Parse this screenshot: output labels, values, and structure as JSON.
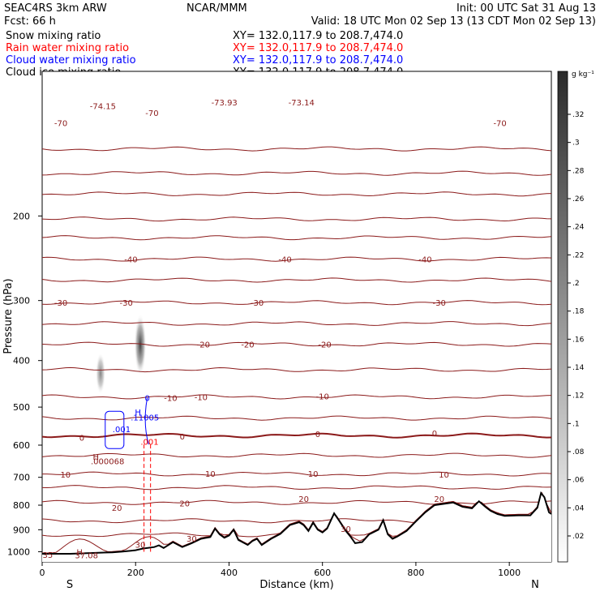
{
  "header": {
    "model": "SEAC4RS  3km ARW",
    "org": "NCAR/MMM",
    "init": "Init: 00 UTC Sat 31 Aug 13",
    "fcst": "Fcst:   66 h",
    "valid": "Valid: 18 UTC Mon 02 Sep 13 (13 CDT Mon 02 Sep 13)",
    "fields": [
      {
        "name": "Snow mixing ratio",
        "color": "#000000",
        "xy": "XY= 132.0,117.9 to 208.7,474.0"
      },
      {
        "name": "Rain water mixing ratio",
        "color": "#ff0000",
        "xy": "XY= 132.0,117.9 to 208.7,474.0"
      },
      {
        "name": "Cloud water mixing ratio",
        "color": "#0000ff",
        "xy": "XY= 132.0,117.9 to 208.7,474.0"
      },
      {
        "name": "Cloud ice mixing ratio",
        "color": "#000000",
        "xy": "XY= 132.0,117.9 to 208.7,474.0"
      }
    ]
  },
  "colorbar": {
    "unit": "g kg⁻¹",
    "ticks": [
      ".32",
      ".3",
      ".28",
      ".26",
      ".24",
      ".22",
      ".2",
      ".18",
      ".16",
      ".14",
      ".12",
      ".1",
      ".08",
      ".06",
      ".04",
      ".02"
    ]
  },
  "chart_data": {
    "type": "heatmap",
    "xlabel": "Distance (km)",
    "ylabel": "Pressure (hPa)",
    "xlim": [
      0,
      1090
    ],
    "ylim": [
      1050,
      100
    ],
    "y_scale": "log",
    "x_ticks": [
      0,
      200,
      400,
      600,
      800,
      1000
    ],
    "y_ticks": [
      200,
      300,
      400,
      500,
      600,
      700,
      800,
      900,
      1000
    ],
    "endpoint_labels": {
      "left": "S",
      "right": "N"
    },
    "contour_color": "#8b1a1a",
    "temperature_labels": [
      {
        "text": "-70",
        "x": 40,
        "p": 128
      },
      {
        "text": "-74.15",
        "x": 130,
        "p": 118
      },
      {
        "text": "-70",
        "x": 235,
        "p": 122
      },
      {
        "text": "-73.93",
        "x": 390,
        "p": 116
      },
      {
        "text": "-73.14",
        "x": 555,
        "p": 116
      },
      {
        "text": "-70",
        "x": 980,
        "p": 128
      },
      {
        "text": "-40",
        "x": 190,
        "p": 246
      },
      {
        "text": "-40",
        "x": 520,
        "p": 246
      },
      {
        "text": "-40",
        "x": 820,
        "p": 246
      },
      {
        "text": "-30",
        "x": 40,
        "p": 303
      },
      {
        "text": "-30",
        "x": 180,
        "p": 303
      },
      {
        "text": "-30",
        "x": 460,
        "p": 303
      },
      {
        "text": "-30",
        "x": 850,
        "p": 303
      },
      {
        "text": "-20",
        "x": 345,
        "p": 370
      },
      {
        "text": "-20",
        "x": 440,
        "p": 370
      },
      {
        "text": "-20",
        "x": 605,
        "p": 370
      },
      {
        "text": "-10",
        "x": 275,
        "p": 478
      },
      {
        "text": "-10",
        "x": 340,
        "p": 476
      },
      {
        "text": "-10",
        "x": 600,
        "p": 474
      },
      {
        "text": "0",
        "x": 85,
        "p": 578
      },
      {
        "text": "0",
        "x": 300,
        "p": 575
      },
      {
        "text": "0",
        "x": 590,
        "p": 568
      },
      {
        "text": "0",
        "x": 840,
        "p": 566
      },
      {
        "text": "10",
        "x": 50,
        "p": 690
      },
      {
        "text": "10",
        "x": 360,
        "p": 688
      },
      {
        "text": "10",
        "x": 580,
        "p": 688
      },
      {
        "text": "10",
        "x": 860,
        "p": 690
      },
      {
        "text": "20",
        "x": 160,
        "p": 810
      },
      {
        "text": "20",
        "x": 305,
        "p": 792
      },
      {
        "text": "20",
        "x": 560,
        "p": 776
      },
      {
        "text": "20",
        "x": 850,
        "p": 776
      },
      {
        "text": "30",
        "x": 320,
        "p": 938
      },
      {
        "text": "30",
        "x": 650,
        "p": 895
      },
      {
        "text": "30",
        "x": 210,
        "p": 965
      },
      {
        "text": "35",
        "x": 12,
        "p": 1013
      }
    ],
    "temperature_isotherms": [
      {
        "t": -70,
        "p": 145
      },
      {
        "t": -70,
        "p": 163
      },
      {
        "t": -60,
        "p": 180
      },
      {
        "t": -60,
        "p": 203
      },
      {
        "t": -50,
        "p": 222
      },
      {
        "t": -40,
        "p": 246
      },
      {
        "t": -35,
        "p": 272
      },
      {
        "t": -30,
        "p": 303
      },
      {
        "t": -25,
        "p": 335
      },
      {
        "t": -20,
        "p": 370
      },
      {
        "t": -15,
        "p": 418
      },
      {
        "t": -10,
        "p": 476
      },
      {
        "t": -5,
        "p": 527
      },
      {
        "t": 0,
        "p": 573
      },
      {
        "t": 5,
        "p": 630
      },
      {
        "t": 10,
        "p": 689
      },
      {
        "t": 15,
        "p": 735
      },
      {
        "t": 20,
        "p": 790
      },
      {
        "t": 25,
        "p": 862
      },
      {
        "t": 30,
        "p": 922
      },
      {
        "t": 35,
        "p": 975
      }
    ],
    "extrema_labels": [
      {
        "text": "H",
        "x": 205,
        "p": 512,
        "color": "#0000ff"
      },
      {
        "text": ".11005",
        "x": 220,
        "p": 525,
        "color": "#0000ff"
      },
      {
        "text": "H",
        "x": 115,
        "p": 633,
        "color": "#8b1a1a"
      },
      {
        "text": ".000068",
        "x": 140,
        "p": 647,
        "color": "#8b1a1a"
      },
      {
        "text": "H",
        "x": 80,
        "p": 1000,
        "color": "#8b1a1a"
      },
      {
        "text": "37.08",
        "x": 95,
        "p": 1015,
        "color": "#8b1a1a"
      }
    ],
    "cloud_water_labels": [
      {
        "text": "0",
        "x": 225,
        "p": 478,
        "color": "#0000ff"
      },
      {
        "text": ".001",
        "x": 170,
        "p": 555,
        "color": "#0000ff"
      },
      {
        "text": ".001",
        "x": 230,
        "p": 590,
        "color": "#ff0000"
      }
    ],
    "snow_shading": [
      {
        "x": 210,
        "p_top": 320,
        "p_bottom": 430,
        "peak_g_kg": 0.3
      },
      {
        "x": 125,
        "p_top": 385,
        "p_bottom": 470,
        "peak_g_kg": 0.12
      }
    ],
    "terrain_pressure": [
      [
        0,
        1010
      ],
      [
        60,
        1010
      ],
      [
        120,
        1005
      ],
      [
        150,
        1003
      ],
      [
        170,
        1000
      ],
      [
        190,
        995
      ],
      [
        200,
        993
      ],
      [
        215,
        985
      ],
      [
        240,
        978
      ],
      [
        250,
        970
      ],
      [
        260,
        982
      ],
      [
        280,
        955
      ],
      [
        300,
        978
      ],
      [
        320,
        960
      ],
      [
        340,
        940
      ],
      [
        360,
        932
      ],
      [
        370,
        895
      ],
      [
        380,
        920
      ],
      [
        390,
        935
      ],
      [
        400,
        925
      ],
      [
        410,
        900
      ],
      [
        420,
        945
      ],
      [
        440,
        968
      ],
      [
        450,
        950
      ],
      [
        460,
        940
      ],
      [
        470,
        968
      ],
      [
        490,
        940
      ],
      [
        510,
        918
      ],
      [
        530,
        880
      ],
      [
        550,
        868
      ],
      [
        560,
        880
      ],
      [
        570,
        905
      ],
      [
        580,
        870
      ],
      [
        590,
        900
      ],
      [
        600,
        912
      ],
      [
        610,
        895
      ],
      [
        625,
        832
      ],
      [
        635,
        860
      ],
      [
        650,
        905
      ],
      [
        660,
        930
      ],
      [
        670,
        960
      ],
      [
        685,
        955
      ],
      [
        700,
        920
      ],
      [
        720,
        900
      ],
      [
        730,
        860
      ],
      [
        740,
        920
      ],
      [
        750,
        940
      ],
      [
        760,
        930
      ],
      [
        780,
        905
      ],
      [
        800,
        865
      ],
      [
        820,
        828
      ],
      [
        840,
        800
      ],
      [
        860,
        795
      ],
      [
        880,
        790
      ],
      [
        900,
        806
      ],
      [
        920,
        812
      ],
      [
        935,
        785
      ],
      [
        950,
        808
      ],
      [
        960,
        822
      ],
      [
        975,
        835
      ],
      [
        990,
        842
      ],
      [
        1020,
        840
      ],
      [
        1045,
        840
      ],
      [
        1060,
        810
      ],
      [
        1068,
        755
      ],
      [
        1075,
        770
      ],
      [
        1085,
        828
      ],
      [
        1090,
        835
      ]
    ]
  }
}
